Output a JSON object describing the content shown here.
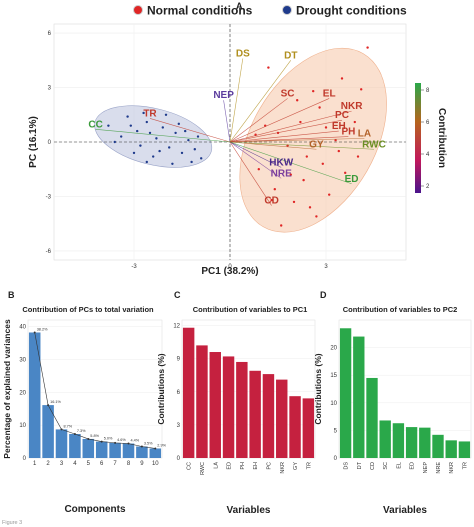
{
  "figure_label": "Figure 3",
  "legend": {
    "normal": {
      "label": "Normal conditions",
      "color": "#e02626"
    },
    "drought": {
      "label": "Drought conditions",
      "color": "#1f3b8c"
    }
  },
  "colorbar": {
    "title": "Contribution",
    "ticks": [
      "8",
      "6",
      "4",
      "2"
    ],
    "colors": [
      "#2aa84a",
      "#b5651d",
      "#c2185b",
      "#4a148c"
    ]
  },
  "chart_data": [
    {
      "panel": "A",
      "type": "scatter",
      "title": "",
      "xlabel": "PC1 (38.2%)",
      "ylabel": "PC (16.1%)",
      "xlim": [
        -5.5,
        5.5
      ],
      "ylim": [
        -6.5,
        6.5
      ],
      "xticks": [
        "-3",
        "0",
        "3"
      ],
      "xtick_values": [
        -3,
        0,
        3
      ],
      "yticks": [
        "6",
        "3",
        "0",
        "-3",
        "-6"
      ],
      "ytick_values": [
        6,
        3,
        0,
        -3,
        -6
      ],
      "variables": [
        {
          "name": "DS",
          "x": 0.4,
          "y": 4.6,
          "color": "#b08f1e"
        },
        {
          "name": "DT",
          "x": 1.9,
          "y": 4.5,
          "color": "#b08f1e"
        },
        {
          "name": "NEP",
          "x": -0.2,
          "y": 2.3,
          "color": "#5c3d9e"
        },
        {
          "name": "SC",
          "x": 1.8,
          "y": 2.4,
          "color": "#c0392b"
        },
        {
          "name": "EL",
          "x": 3.1,
          "y": 2.4,
          "color": "#c0392b"
        },
        {
          "name": "NKR",
          "x": 3.8,
          "y": 1.7,
          "color": "#c0392b"
        },
        {
          "name": "PC",
          "x": 3.5,
          "y": 1.2,
          "color": "#c0392b"
        },
        {
          "name": "EH",
          "x": 3.4,
          "y": 0.6,
          "color": "#c0392b"
        },
        {
          "name": "PH",
          "x": 3.7,
          "y": 0.3,
          "color": "#c0392b"
        },
        {
          "name": "LA",
          "x": 4.2,
          "y": 0.2,
          "color": "#b3622a"
        },
        {
          "name": "RWC",
          "x": 4.5,
          "y": -0.4,
          "color": "#6b8e23"
        },
        {
          "name": "GY",
          "x": 2.7,
          "y": -0.4,
          "color": "#b3622a"
        },
        {
          "name": "HKW",
          "x": 1.6,
          "y": -1.4,
          "color": "#4a2a8a"
        },
        {
          "name": "NRE",
          "x": 1.6,
          "y": -2.0,
          "color": "#7b3f9e"
        },
        {
          "name": "ED",
          "x": 3.8,
          "y": -2.3,
          "color": "#3a9a3a"
        },
        {
          "name": "CD",
          "x": 1.3,
          "y": -3.5,
          "color": "#c0392b"
        },
        {
          "name": "TR",
          "x": -2.5,
          "y": 1.3,
          "color": "#c0392b"
        },
        {
          "name": "CC",
          "x": -4.2,
          "y": 0.7,
          "color": "#3a9a3a"
        }
      ],
      "normal_points": [
        [
          1.2,
          4.1
        ],
        [
          3.5,
          3.5
        ],
        [
          4.3,
          5.2
        ],
        [
          2.6,
          2.8
        ],
        [
          1.5,
          0.5
        ],
        [
          2.2,
          1.1
        ],
        [
          3.0,
          0.8
        ],
        [
          2.4,
          -0.8
        ],
        [
          3.4,
          -0.5
        ],
        [
          1.8,
          -0.2
        ],
        [
          2.9,
          -1.2
        ],
        [
          3.6,
          -1.7
        ],
        [
          1.4,
          -2.6
        ],
        [
          2.3,
          -2.1
        ],
        [
          3.1,
          -2.9
        ],
        [
          2.0,
          -3.3
        ],
        [
          2.7,
          -4.1
        ],
        [
          1.6,
          -4.6
        ],
        [
          0.9,
          -1.5
        ],
        [
          4.0,
          -0.8
        ],
        [
          1.1,
          0.9
        ],
        [
          2.8,
          1.9
        ],
        [
          3.9,
          1.1
        ],
        [
          2.5,
          -3.6
        ],
        [
          1.3,
          -3.2
        ],
        [
          4.1,
          2.9
        ],
        [
          2.1,
          2.3
        ],
        [
          0.8,
          0.4
        ],
        [
          3.3,
          0.1
        ],
        [
          1.9,
          -1.8
        ]
      ],
      "drought_points": [
        [
          -3.8,
          0.9
        ],
        [
          -3.2,
          1.4
        ],
        [
          -2.9,
          0.6
        ],
        [
          -2.6,
          1.1
        ],
        [
          -2.3,
          0.2
        ],
        [
          -2.1,
          0.8
        ],
        [
          -1.9,
          -0.3
        ],
        [
          -1.7,
          0.5
        ],
        [
          -1.5,
          -0.6
        ],
        [
          -1.3,
          0.1
        ],
        [
          -1.1,
          -0.4
        ],
        [
          -0.9,
          -0.9
        ],
        [
          -2.8,
          -0.2
        ],
        [
          -3.4,
          0.3
        ],
        [
          -2.4,
          -0.8
        ],
        [
          -2.0,
          1.5
        ],
        [
          -1.6,
          1.0
        ],
        [
          -1.2,
          -1.1
        ],
        [
          -3.0,
          -0.6
        ],
        [
          -2.5,
          0.5
        ],
        [
          -1.8,
          -1.2
        ],
        [
          -2.2,
          -0.5
        ],
        [
          -3.6,
          0.0
        ],
        [
          -1.4,
          0.6
        ],
        [
          -2.7,
          1.6
        ],
        [
          -3.1,
          0.9
        ],
        [
          -1.0,
          0.3
        ],
        [
          -2.6,
          -1.1
        ]
      ]
    },
    {
      "panel": "B",
      "type": "bar",
      "title": "Contribution of PCs to total variation",
      "xlabel": "Components",
      "ylabel": "Percentage of explained variances",
      "ylim": [
        0,
        42
      ],
      "yticks": [
        "0",
        "10",
        "20",
        "30",
        "40"
      ],
      "ytick_values": [
        0,
        10,
        20,
        30,
        40
      ],
      "color": "#4a86c5",
      "categories": [
        "1",
        "2",
        "3",
        "4",
        "5",
        "6",
        "7",
        "8",
        "9",
        "10"
      ],
      "values": [
        38.2,
        16.1,
        8.7,
        7.3,
        5.8,
        5.0,
        4.6,
        4.4,
        3.5,
        2.9
      ],
      "value_labels": [
        "38.2%",
        "16.1%",
        "8.7%",
        "7.3%",
        "5.8%",
        "5.0%",
        "4.6%",
        "4.4%",
        "3.5%",
        "2.9%"
      ]
    },
    {
      "panel": "C",
      "type": "bar",
      "title": "Contribution of variables to PC1",
      "xlabel": "Variables",
      "ylabel": "Contributions (%)",
      "ylim": [
        0,
        12.5
      ],
      "yticks": [
        "0",
        "3",
        "6",
        "9",
        "12"
      ],
      "ytick_values": [
        0,
        3,
        6,
        9,
        12
      ],
      "color": "#c5213f",
      "categories": [
        "CC",
        "RWC",
        "LA",
        "ED",
        "PH",
        "EH",
        "PC",
        "NKR",
        "GY",
        "TR"
      ],
      "values": [
        11.8,
        10.2,
        9.6,
        9.2,
        8.7,
        7.9,
        7.6,
        7.1,
        5.6,
        5.4
      ]
    },
    {
      "panel": "D",
      "type": "bar",
      "title": "Contribution of variables to PC2",
      "xlabel": "Variables",
      "ylabel": "Contributions (%)",
      "ylim": [
        0,
        25
      ],
      "yticks": [
        "0",
        "5",
        "10",
        "15",
        "20"
      ],
      "ytick_values": [
        0,
        5,
        10,
        15,
        20
      ],
      "color": "#2aa84a",
      "categories": [
        "DS",
        "DT",
        "CD",
        "SC",
        "EL",
        "ED",
        "NEP",
        "NRE",
        "NKR",
        "TR"
      ],
      "values": [
        23.5,
        22.0,
        14.5,
        6.8,
        6.3,
        5.6,
        5.5,
        4.2,
        3.2,
        3.0
      ]
    }
  ]
}
